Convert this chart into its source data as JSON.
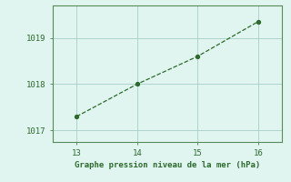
{
  "x": [
    13,
    14,
    15,
    16
  ],
  "y": [
    1017.3,
    1018.0,
    1018.6,
    1019.35
  ],
  "line_color": "#2d6a2d",
  "marker_color": "#2d6a2d",
  "background_color": "#e0f5f0",
  "grid_color": "#a8cfc8",
  "xlabel": "Graphe pression niveau de la mer (hPa)",
  "xlim": [
    12.6,
    16.4
  ],
  "ylim": [
    1016.75,
    1019.7
  ],
  "xticks": [
    13,
    14,
    15,
    16
  ],
  "yticks": [
    1017,
    1018,
    1019
  ],
  "tick_color": "#2d6a2d",
  "label_fontsize": 6.5,
  "tick_fontsize": 6.5
}
